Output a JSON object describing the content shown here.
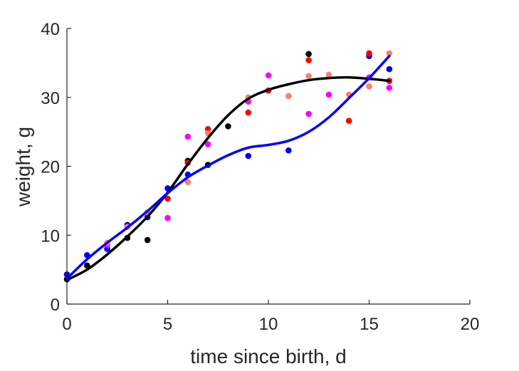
{
  "chart_data": {
    "type": "scatter",
    "xlabel": "time since birth, d",
    "ylabel": "weight, g",
    "xlim": [
      0,
      20
    ],
    "ylim": [
      0,
      40
    ],
    "xticks": [
      "0",
      "5",
      "10",
      "15",
      "20"
    ],
    "yticks": [
      "0",
      "10",
      "20",
      "30",
      "40"
    ],
    "grid": false,
    "legend": "none",
    "series": [
      {
        "kind": "points",
        "color": "#000000",
        "points": [
          [
            0,
            3.6
          ],
          [
            1,
            5.6
          ],
          [
            2,
            8.0
          ],
          [
            3,
            9.6
          ],
          [
            4,
            9.3
          ],
          [
            6,
            20.8
          ],
          [
            7,
            20.2
          ],
          [
            8,
            25.8
          ],
          [
            12,
            36.3
          ],
          [
            16,
            32.4
          ]
        ]
      },
      {
        "kind": "points",
        "color": "#0000ff",
        "points": [
          [
            0,
            4.3
          ],
          [
            1,
            7.1
          ],
          [
            2,
            8.0
          ],
          [
            3,
            11.5
          ],
          [
            4,
            12.6
          ],
          [
            5,
            16.8
          ],
          [
            6,
            18.8
          ],
          [
            9,
            21.5
          ],
          [
            11,
            22.3
          ],
          [
            15,
            36.0
          ],
          [
            16,
            34.1
          ]
        ]
      },
      {
        "kind": "points",
        "color": "#ff0000",
        "points": [
          [
            5,
            15.3
          ],
          [
            6,
            20.5
          ],
          [
            7,
            25.4
          ],
          [
            9,
            27.8
          ],
          [
            10,
            31.0
          ],
          [
            12,
            35.4
          ],
          [
            14,
            26.6
          ],
          [
            15,
            36.4
          ],
          [
            16,
            32.4
          ]
        ]
      },
      {
        "kind": "points",
        "color": "#ff00ff",
        "points": [
          [
            2,
            8.6
          ],
          [
            5,
            12.5
          ],
          [
            6,
            24.3
          ],
          [
            7,
            23.2
          ],
          [
            9,
            29.4
          ],
          [
            10,
            33.2
          ],
          [
            12,
            27.6
          ],
          [
            13,
            30.4
          ],
          [
            15,
            32.9
          ],
          [
            16,
            31.4
          ]
        ]
      },
      {
        "kind": "points",
        "color": "#fa8072",
        "points": [
          [
            2,
            8.9
          ],
          [
            3,
            11.2
          ],
          [
            4,
            13.3
          ],
          [
            6,
            17.7
          ],
          [
            7,
            24.8
          ],
          [
            9,
            30.0
          ],
          [
            11,
            30.2
          ],
          [
            12,
            33.1
          ],
          [
            13,
            33.3
          ],
          [
            14,
            30.4
          ],
          [
            15,
            31.6
          ],
          [
            16,
            36.4
          ]
        ]
      },
      {
        "kind": "line",
        "color": "#000000",
        "points": [
          [
            0,
            3.5
          ],
          [
            1,
            5.0
          ],
          [
            2,
            7.2
          ],
          [
            3,
            9.8
          ],
          [
            4,
            12.7
          ],
          [
            5,
            16.2
          ],
          [
            6,
            20.3
          ],
          [
            7,
            24.1
          ],
          [
            8,
            27.4
          ],
          [
            9,
            29.8
          ],
          [
            10,
            31.1
          ],
          [
            11,
            31.9
          ],
          [
            12,
            32.5
          ],
          [
            13,
            32.8
          ],
          [
            14,
            32.9
          ],
          [
            15,
            32.7
          ],
          [
            16,
            32.4
          ]
        ]
      },
      {
        "kind": "line",
        "color": "#0000ff",
        "points": [
          [
            0,
            3.7
          ],
          [
            1,
            6.5
          ],
          [
            2,
            8.9
          ],
          [
            3,
            11.1
          ],
          [
            4,
            13.5
          ],
          [
            5,
            16.1
          ],
          [
            6,
            18.4
          ],
          [
            7,
            20.1
          ],
          [
            8,
            21.6
          ],
          [
            9,
            22.7
          ],
          [
            10,
            23.1
          ],
          [
            11,
            23.7
          ],
          [
            12,
            25.0
          ],
          [
            13,
            27.1
          ],
          [
            14,
            29.9
          ],
          [
            15,
            32.8
          ],
          [
            16,
            36.0
          ]
        ]
      }
    ]
  }
}
